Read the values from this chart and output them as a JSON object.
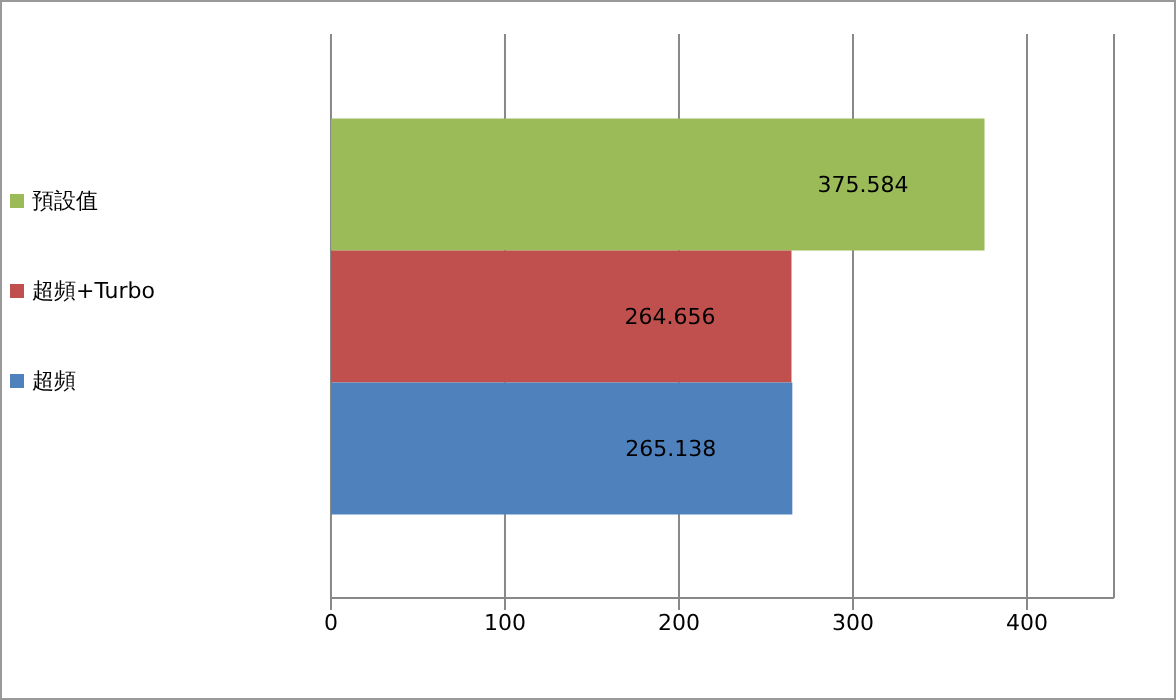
{
  "chart_data": {
    "type": "bar",
    "orientation": "horizontal",
    "categories": [
      null
    ],
    "series": [
      {
        "name": "預設值",
        "color": "#9bbb59",
        "values": [
          375.584
        ]
      },
      {
        "name": "超頻+Turbo",
        "color": "#c0504d",
        "values": [
          264.656
        ]
      },
      {
        "name": "超頻",
        "color": "#4f81bd",
        "values": [
          265.138
        ]
      }
    ],
    "xlim": [
      0,
      450
    ],
    "xticks": [
      0,
      100,
      200,
      300,
      400
    ],
    "grid": "x",
    "legend": "left",
    "data_labels": true
  }
}
